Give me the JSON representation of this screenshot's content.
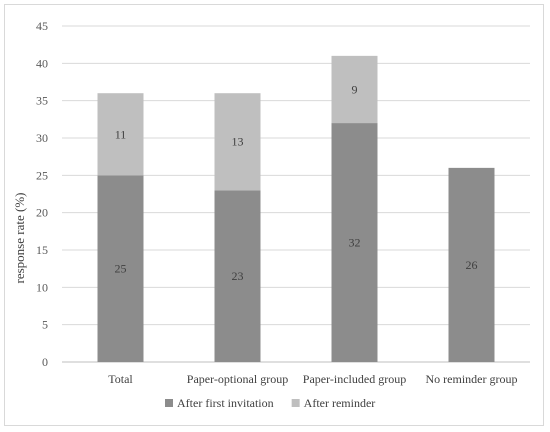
{
  "chart_data": {
    "type": "bar",
    "stacked": true,
    "categories": [
      "Total",
      "Paper-optional group",
      "Paper-included group",
      "No reminder group"
    ],
    "series": [
      {
        "name": "After first invitation",
        "values": [
          25,
          23,
          32,
          26
        ],
        "color": "#8c8c8c"
      },
      {
        "name": "After reminder",
        "values": [
          11,
          13,
          9,
          null
        ],
        "color": "#bfbfbf"
      }
    ],
    "ylabel": "response rate (%)",
    "ylim": [
      0,
      45
    ],
    "yticks": [
      0,
      5,
      10,
      15,
      20,
      25,
      30,
      35,
      40,
      45
    ],
    "grid": true,
    "legend": "bottom"
  }
}
